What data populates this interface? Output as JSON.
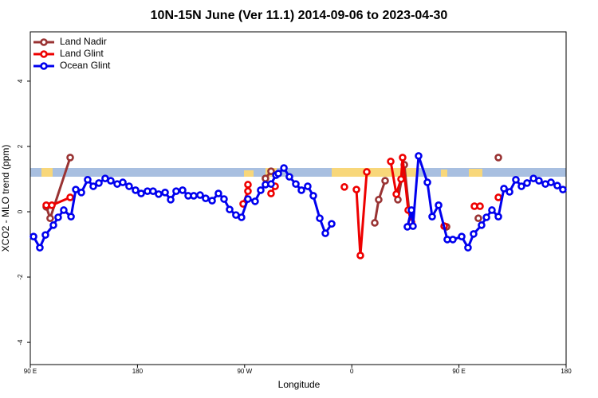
{
  "chart_data": {
    "type": "line",
    "title": "10N-15N June (Ver 11.1)   2014-09-06 to 2023-04-30",
    "x_label": "Longitude",
    "y_label": "XCO2 - MLO trend (ppm)",
    "xlim": [
      90,
      540
    ],
    "xticks": [
      {
        "value": 90,
        "label": "90 E"
      },
      180,
      {
        "value": 270,
        "label": "90 W"
      },
      {
        "value": 360,
        "label": "0"
      },
      {
        "value": 450,
        "label": "90 E"
      },
      {
        "value": 540,
        "label": "180"
      }
    ],
    "ylim": [
      -4.68,
      5.51
    ],
    "yticks": [
      -4,
      -2,
      0,
      2,
      4
    ],
    "legend": "upper left",
    "series": [
      {
        "name": "Land Nadir",
        "color": "#993333",
        "x": [
          103.4,
          106.7,
          123.5,
          null,
          287.5,
          292.2,
          null,
          379.3,
          382.6,
          388.0,
          null,
          398.7,
          404.1,
          408.1,
          null,
          439.6,
          null,
          466.3,
          null,
          483.1
        ],
        "values": [
          0.15,
          -0.2,
          1.66,
          null,
          1.02,
          1.24,
          null,
          -0.34,
          0.37,
          0.95,
          null,
          0.37,
          1.44,
          0.05,
          null,
          -0.46,
          null,
          -0.2,
          null,
          1.66
        ]
      },
      {
        "name": "Land Glint",
        "color": "#ee0000",
        "x": [
          103.4,
          108.1,
          123.5,
          null,
          268.8,
          272.8,
          272.8,
          null,
          292.2,
          295.6,
          null,
          353.8,
          null,
          363.9,
          367.2,
          372.6,
          null,
          392.7,
          397.4,
          401.4,
          402.7,
          407.4,
          410.1,
          null,
          437.6,
          null,
          463.0,
          467.7,
          null,
          483.1
        ],
        "values": [
          0.2,
          0.2,
          0.44,
          null,
          0.24,
          0.63,
          0.83,
          null,
          0.56,
          0.78,
          null,
          0.76,
          null,
          0.68,
          -1.34,
          1.22,
          null,
          1.54,
          0.54,
          1.0,
          1.66,
          0.05,
          -0.32,
          null,
          -0.44,
          null,
          0.17,
          0.17,
          null,
          0.44
        ]
      },
      {
        "name": "Ocean Glint",
        "color": "#0000ee",
        "x": [
          92.7,
          98.0,
          102.7,
          109.4,
          113.4,
          118.1,
          124.2,
          128.2,
          132.9,
          138.2,
          142.9,
          147.6,
          152.9,
          157.6,
          163.0,
          167.7,
          173.0,
          178.4,
          183.1,
          188.4,
          193.1,
          197.8,
          203.2,
          207.9,
          212.5,
          217.9,
          222.6,
          227.3,
          232.6,
          237.3,
          242.7,
          248.0,
          252.7,
          257.4,
          262.7,
          267.4,
          272.8,
          278.8,
          283.5,
          287.5,
          292.2,
          296.3,
          298.3,
          303.0,
          307.6,
          313.0,
          317.7,
          323.0,
          327.7,
          333.1,
          337.8,
          343.1,
          null,
          406.7,
          410.1,
          411.4,
          416.1,
          423.5,
          427.5,
          432.9,
          440.2,
          444.9,
          452.3,
          457.6,
          462.3,
          469.0,
          473.1,
          477.7,
          483.1,
          487.8,
          492.5,
          497.8,
          502.5,
          507.2,
          512.6,
          517.2,
          522.6,
          527.3,
          532.6,
          537.3
        ],
        "values": [
          -0.76,
          -1.1,
          -0.71,
          -0.41,
          -0.17,
          0.05,
          -0.15,
          0.68,
          0.59,
          0.98,
          0.78,
          0.88,
          1.02,
          0.95,
          0.85,
          0.9,
          0.78,
          0.66,
          0.56,
          0.63,
          0.63,
          0.54,
          0.59,
          0.37,
          0.63,
          0.66,
          0.49,
          0.49,
          0.51,
          0.41,
          0.34,
          0.56,
          0.39,
          0.07,
          -0.1,
          -0.17,
          0.39,
          0.32,
          0.66,
          0.83,
          0.85,
          1.12,
          1.17,
          1.34,
          1.07,
          0.85,
          0.66,
          0.78,
          0.49,
          -0.2,
          -0.66,
          -0.37,
          null,
          -0.46,
          0.05,
          -0.44,
          1.71,
          0.9,
          -0.15,
          0.2,
          -0.85,
          -0.85,
          -0.76,
          -1.1,
          -0.68,
          -0.41,
          -0.17,
          0.05,
          -0.15,
          0.71,
          0.61,
          0.98,
          0.78,
          0.88,
          1.02,
          0.95,
          0.85,
          0.9,
          0.8,
          0.68
        ]
      }
    ]
  }
}
